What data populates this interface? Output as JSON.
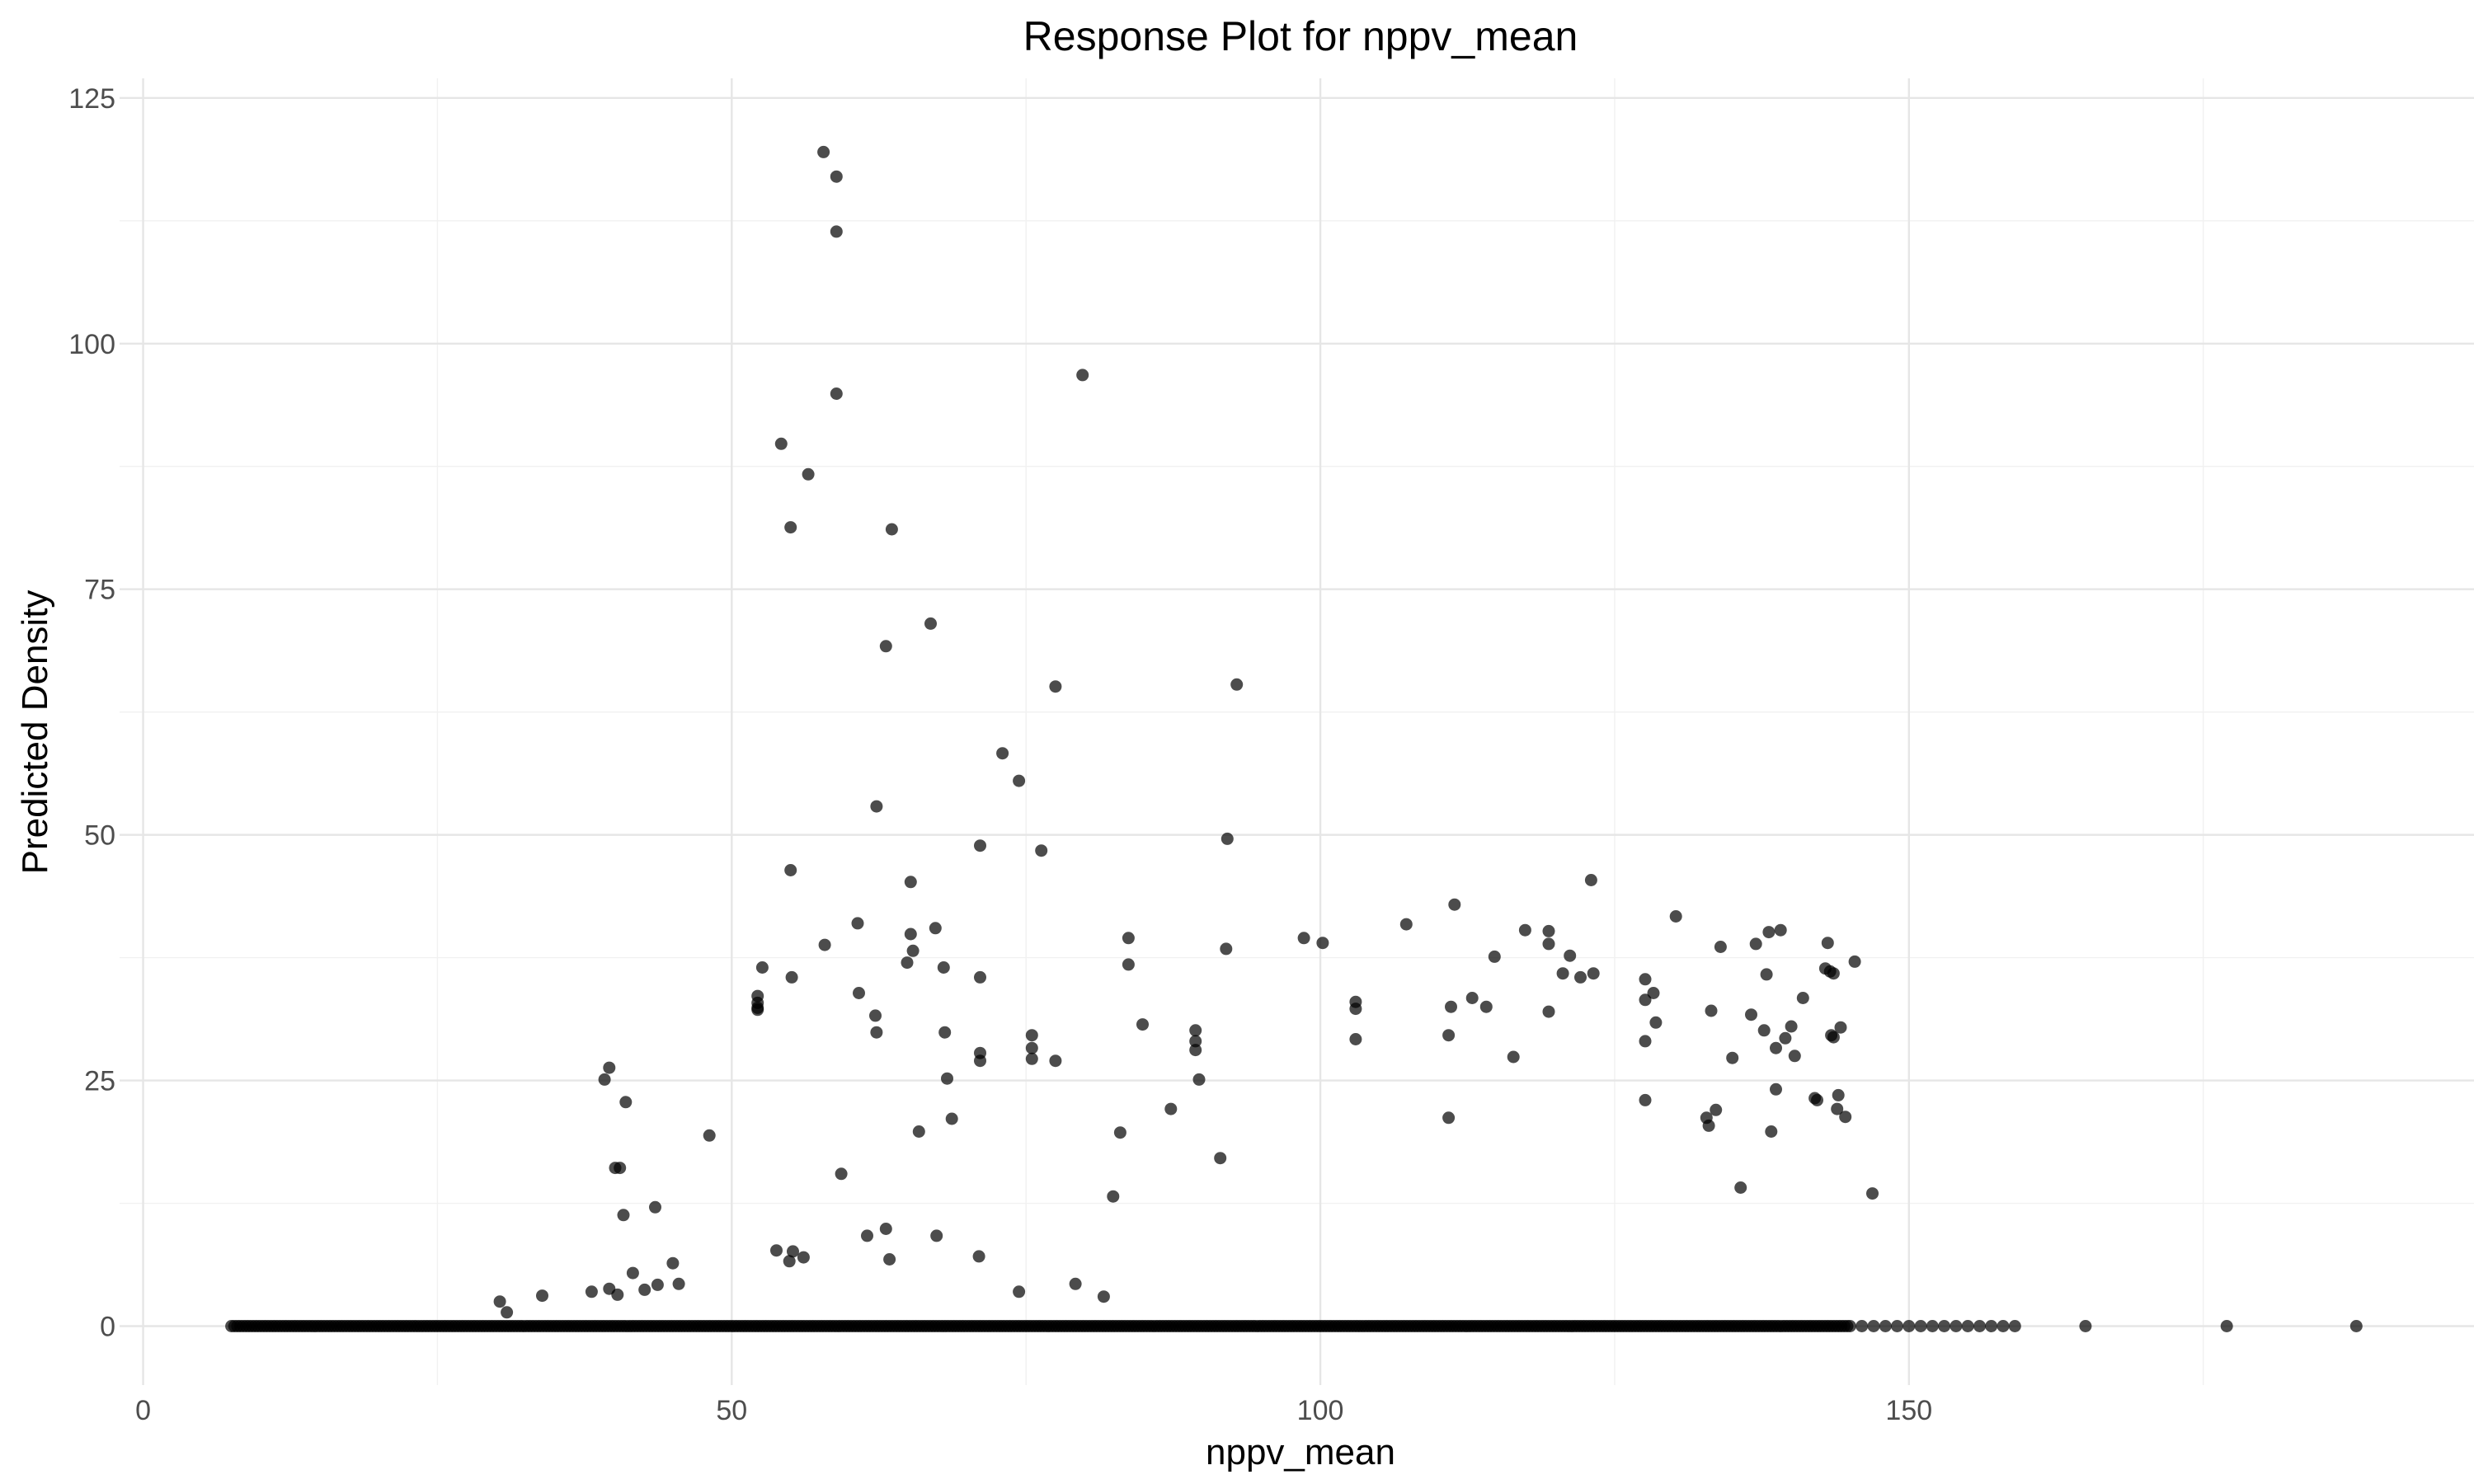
{
  "chart_data": {
    "type": "scatter",
    "title": "Response Plot for nppv_mean",
    "xlabel": "nppv_mean",
    "ylabel": "Predicted Density",
    "xlim": [
      -2,
      198
    ],
    "ylim": [
      -6,
      127
    ],
    "x_ticks": [
      0,
      50,
      100,
      150
    ],
    "y_ticks": [
      0,
      25,
      50,
      75,
      100,
      125
    ],
    "x_tick_labels": [
      "0",
      "50",
      "100",
      "150"
    ],
    "y_tick_labels": [
      "0",
      "25",
      "50",
      "75",
      "100",
      "125"
    ],
    "grid": true,
    "point_color": "#000000",
    "point_alpha": 0.7,
    "zero_points": {
      "y": 0,
      "x_dense_range": [
        7.5,
        145
      ],
      "x_sparse": [
        146,
        147,
        148,
        149,
        150,
        151,
        152,
        153,
        154,
        155,
        156,
        157,
        158,
        159,
        165,
        177,
        188
      ]
    },
    "points": [
      [
        57.8,
        119.5
      ],
      [
        58.9,
        117
      ],
      [
        58.9,
        111.4
      ],
      [
        58.9,
        94.9
      ],
      [
        79.8,
        96.8
      ],
      [
        54.2,
        89.8
      ],
      [
        56.5,
        86.7
      ],
      [
        55,
        81.3
      ],
      [
        63.6,
        81.1
      ],
      [
        66.9,
        71.5
      ],
      [
        63.1,
        69.2
      ],
      [
        77.5,
        65.1
      ],
      [
        92.9,
        65.3
      ],
      [
        73,
        58.3
      ],
      [
        74.4,
        55.5
      ],
      [
        62.3,
        52.9
      ],
      [
        92.1,
        49.6
      ],
      [
        71.1,
        48.9
      ],
      [
        76.3,
        48.4
      ],
      [
        55,
        46.4
      ],
      [
        65.2,
        45.2
      ],
      [
        60.7,
        41
      ],
      [
        67.3,
        40.5
      ],
      [
        65.2,
        39.9
      ],
      [
        57.9,
        38.8
      ],
      [
        65.4,
        38.2
      ],
      [
        64.9,
        37
      ],
      [
        68,
        36.5
      ],
      [
        52.6,
        36.5
      ],
      [
        55.1,
        35.5
      ],
      [
        71.1,
        35.5
      ],
      [
        52.2,
        33.6
      ],
      [
        52.2,
        32.9
      ],
      [
        52.2,
        32.4
      ],
      [
        52.2,
        32.2
      ],
      [
        60.8,
        33.9
      ],
      [
        62.2,
        31.6
      ],
      [
        62.3,
        29.9
      ],
      [
        68.1,
        29.9
      ],
      [
        75.5,
        29.6
      ],
      [
        75.5,
        28.3
      ],
      [
        75.5,
        27.2
      ],
      [
        71.1,
        27.8
      ],
      [
        71.1,
        27
      ],
      [
        77.5,
        27
      ],
      [
        68.3,
        25.2
      ],
      [
        68.7,
        21.1
      ],
      [
        65.9,
        19.8
      ],
      [
        59.3,
        15.5
      ],
      [
        83.7,
        39.5
      ],
      [
        83.7,
        36.8
      ],
      [
        84.9,
        30.7
      ],
      [
        89.4,
        30.1
      ],
      [
        89.4,
        29
      ],
      [
        89.4,
        28.1
      ],
      [
        89.7,
        25.1
      ],
      [
        87.3,
        22.1
      ],
      [
        83,
        19.7
      ],
      [
        82.4,
        13.2
      ],
      [
        91.5,
        17.1
      ],
      [
        92,
        38.4
      ],
      [
        98.6,
        39.5
      ],
      [
        100.2,
        39
      ],
      [
        103,
        33
      ],
      [
        103,
        32.3
      ],
      [
        103,
        29.2
      ],
      [
        107.3,
        40.9
      ],
      [
        111.4,
        42.9
      ],
      [
        111.1,
        32.5
      ],
      [
        110.9,
        29.6
      ],
      [
        110.9,
        21.2
      ],
      [
        112.9,
        33.4
      ],
      [
        114.1,
        32.5
      ],
      [
        114.8,
        37.6
      ],
      [
        116.4,
        27.4
      ],
      [
        117.4,
        40.3
      ],
      [
        119.4,
        40.2
      ],
      [
        119.4,
        38.9
      ],
      [
        119.4,
        32
      ],
      [
        120.6,
        35.9
      ],
      [
        121.2,
        37.7
      ],
      [
        122.1,
        35.5
      ],
      [
        123,
        45.4
      ],
      [
        123.2,
        35.9
      ],
      [
        127.6,
        35.3
      ],
      [
        127.6,
        33.2
      ],
      [
        127.6,
        29
      ],
      [
        127.6,
        23
      ],
      [
        128.3,
        33.9
      ],
      [
        128.5,
        30.9
      ],
      [
        130.2,
        41.7
      ],
      [
        132.8,
        21.2
      ],
      [
        133,
        20.4
      ],
      [
        133.2,
        32.1
      ],
      [
        133.6,
        22
      ],
      [
        134,
        38.6
      ],
      [
        135,
        27.3
      ],
      [
        135.7,
        14.1
      ],
      [
        136.6,
        31.7
      ],
      [
        137,
        38.9
      ],
      [
        137.7,
        30.1
      ],
      [
        137.9,
        35.8
      ],
      [
        138.1,
        40.1
      ],
      [
        138.3,
        19.8
      ],
      [
        138.7,
        24.1
      ],
      [
        138.7,
        28.3
      ],
      [
        139.1,
        40.3
      ],
      [
        139.5,
        29.3
      ],
      [
        140,
        30.5
      ],
      [
        140.3,
        27.5
      ],
      [
        141,
        33.4
      ],
      [
        142,
        23.2
      ],
      [
        142.2,
        23
      ],
      [
        142.9,
        36.4
      ],
      [
        143.1,
        39
      ],
      [
        143.3,
        36.1
      ],
      [
        143.4,
        29.6
      ],
      [
        143.6,
        29.4
      ],
      [
        143.6,
        35.9
      ],
      [
        143.9,
        22.1
      ],
      [
        144,
        23.5
      ],
      [
        144.2,
        30.4
      ],
      [
        144.6,
        21.3
      ],
      [
        145.4,
        37.1
      ],
      [
        146.9,
        13.5
      ],
      [
        39.2,
        25.1
      ],
      [
        39.6,
        26.3
      ],
      [
        40.1,
        16.1
      ],
      [
        40.5,
        16.1
      ],
      [
        40.8,
        11.3
      ],
      [
        41,
        22.8
      ],
      [
        41.6,
        5.4
      ],
      [
        42.6,
        3.7
      ],
      [
        43.5,
        12.1
      ],
      [
        43.7,
        4.2
      ],
      [
        45,
        6.4
      ],
      [
        45.5,
        4.3
      ],
      [
        48.1,
        19.4
      ],
      [
        39.6,
        3.8
      ],
      [
        40.3,
        3.2
      ],
      [
        38.1,
        3.5
      ],
      [
        33.9,
        3.1
      ],
      [
        30.3,
        2.5
      ],
      [
        30.9,
        1.4
      ],
      [
        53.8,
        7.7
      ],
      [
        54.9,
        6.6
      ],
      [
        55.2,
        7.6
      ],
      [
        56.1,
        7
      ],
      [
        61.5,
        9.2
      ],
      [
        63.1,
        9.9
      ],
      [
        63.4,
        6.8
      ],
      [
        67.4,
        9.2
      ],
      [
        71,
        7.1
      ],
      [
        74.4,
        3.5
      ],
      [
        79.2,
        4.3
      ],
      [
        81.6,
        3
      ]
    ]
  }
}
